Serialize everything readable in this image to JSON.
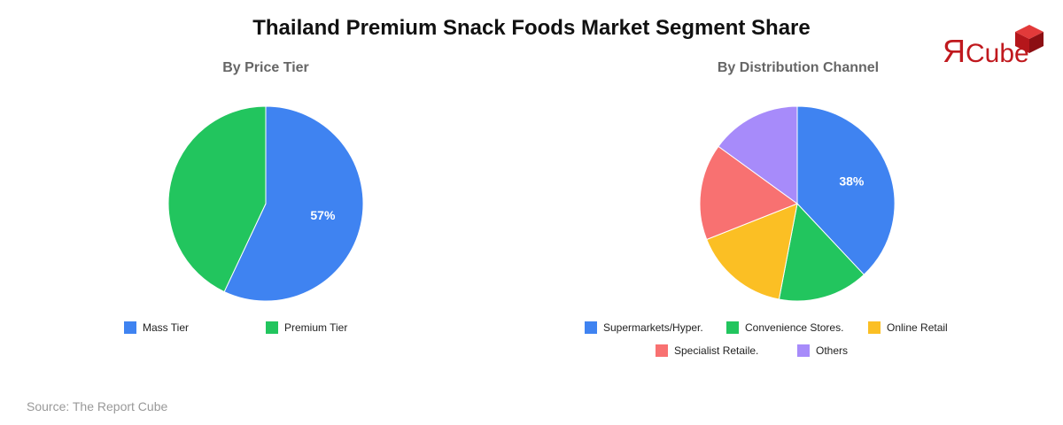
{
  "title": "Thailand Premium Snack Foods Market Segment Share",
  "logo_text": {
    "r": "Я",
    "rest": "Cube"
  },
  "source": "Source: The Report Cube",
  "colors": {
    "brand": "#c0191e"
  },
  "chart_data": [
    {
      "type": "pie",
      "title": "By Price Tier",
      "slices": [
        {
          "label": "Mass Tier",
          "value": 57,
          "color": "#3f83f1",
          "data_label": "57%"
        },
        {
          "label": "Premium Tier",
          "value": 43,
          "color": "#22c55e",
          "data_label": ""
        }
      ],
      "legend_position": "bottom"
    },
    {
      "type": "pie",
      "title": "By Distribution Channel",
      "slices": [
        {
          "label": "Supermarkets/Hyper.",
          "value": 38,
          "color": "#3f83f1",
          "data_label": "38%"
        },
        {
          "label": "Convenience Stores.",
          "value": 15,
          "color": "#22c55e",
          "data_label": ""
        },
        {
          "label": "Online Retail",
          "value": 16,
          "color": "#fbbf24",
          "data_label": ""
        },
        {
          "label": "Specialist Retaile.",
          "value": 16,
          "color": "#f87171",
          "data_label": ""
        },
        {
          "label": "Others",
          "value": 15,
          "color": "#a78bfa",
          "data_label": ""
        }
      ],
      "legend_position": "bottom"
    }
  ]
}
